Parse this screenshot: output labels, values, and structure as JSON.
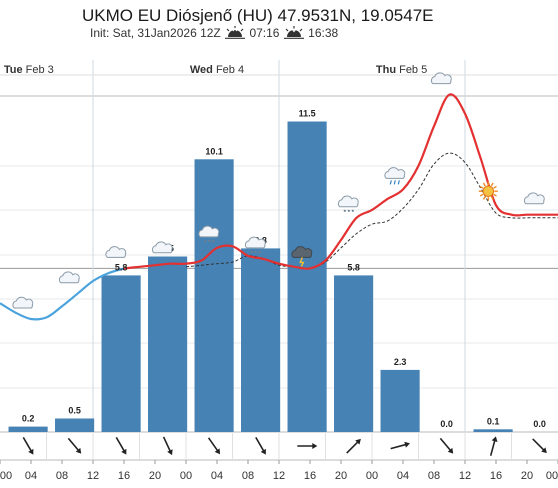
{
  "header": {
    "title": "UKMO EU Diósjenő (HU) 47.9531N, 19.0547E",
    "init_label": "Init: Sat, 31Jan2026 12Z",
    "sunrise": "07:16",
    "sunset": "16:38",
    "sunrise_icon": "sunrise-icon",
    "sunset_icon": "sunset-icon"
  },
  "chart_data": {
    "type": "bar",
    "title": "UKMO EU Diósjenő (HU) 47.9531N, 19.0547E",
    "days": [
      {
        "name": "Tue",
        "date": "Feb 3"
      },
      {
        "name": "Wed",
        "date": "Feb 4"
      },
      {
        "name": "Thu",
        "date": "Feb 5"
      }
    ],
    "x_ticks": [
      "00",
      "04",
      "08",
      "12",
      "16",
      "20",
      "00",
      "04",
      "08",
      "12",
      "16",
      "20",
      "00",
      "04",
      "08",
      "12",
      "16",
      "20",
      "00"
    ],
    "precipitation": {
      "labels": [
        "0.2",
        "0.5",
        "5.8",
        "6.5",
        "10.1",
        "6.8",
        "11.5",
        "5.8",
        "2.3",
        "0.0",
        "0.1",
        "0.0"
      ],
      "values": [
        0.2,
        0.5,
        5.8,
        6.5,
        10.1,
        6.8,
        11.5,
        5.8,
        2.3,
        0.0,
        0.1,
        0.0
      ],
      "color": "#4682b4"
    },
    "temperature": {
      "hours": [
        0,
        4,
        8,
        12,
        16,
        20,
        24,
        28,
        32,
        36,
        40,
        44,
        48,
        52,
        56,
        60,
        64,
        68,
        72,
        76,
        80,
        84,
        88,
        92,
        96,
        100,
        104,
        108,
        112,
        116,
        120,
        124,
        128,
        132,
        136,
        140,
        144
      ],
      "values": [
        -0.2,
        -0.8,
        -1.2,
        -1.1,
        -0.4,
        0.4,
        1.2,
        1.7,
        2.0,
        2.1,
        2.2,
        2.3,
        2.3,
        2.5,
        3.3,
        3.4,
        2.8,
        2.6,
        2.3,
        2.1,
        2.0,
        2.5,
        3.8,
        5.2,
        5.7,
        6.4,
        7.0,
        8.5,
        11.0,
        13.0,
        11.8,
        9.0,
        6.0,
        5.4,
        5.4,
        5.4,
        5.4
      ],
      "cold_color": "#4ba3dd",
      "warm_color": "#e33030",
      "freeze_threshold": 2
    },
    "dewpoint": {
      "hours": [
        48,
        52,
        56,
        60,
        64,
        68,
        72,
        76,
        80,
        84,
        88,
        92,
        96,
        100,
        104,
        108,
        112,
        116,
        120,
        124,
        128,
        132,
        136,
        140,
        144
      ],
      "values": [
        2.1,
        2.2,
        2.3,
        2.4,
        2.8,
        2.6,
        2.2,
        2.1,
        2.0,
        2.4,
        3.3,
        4.2,
        4.8,
        5.0,
        5.8,
        7.0,
        8.6,
        9.3,
        8.7,
        7.1,
        5.5,
        5.2,
        5.2,
        5.2,
        5.2
      ],
      "color": "#333333"
    },
    "weather_icons": [
      {
        "hour": 6,
        "icon": "cloud-icon"
      },
      {
        "hour": 18,
        "icon": "cloud-icon"
      },
      {
        "hour": 30,
        "icon": "cloud-icon"
      },
      {
        "hour": 42,
        "icon": "cloud-icon"
      },
      {
        "hour": 54,
        "icon": "cloud-snow-icon"
      },
      {
        "hour": 66,
        "icon": "cloud-snow-icon"
      },
      {
        "hour": 78,
        "icon": "thunderstorm-icon"
      },
      {
        "hour": 90,
        "icon": "cloud-snow-icon"
      },
      {
        "hour": 102,
        "icon": "cloud-rain-icon"
      },
      {
        "hour": 114,
        "icon": "cloud-icon"
      },
      {
        "hour": 126,
        "icon": "sun-icon"
      },
      {
        "hour": 138,
        "icon": "cloud-icon"
      }
    ],
    "wind_angles": [
      150,
      140,
      150,
      155,
      145,
      150,
      90,
      45,
      75,
      140,
      15,
      135
    ],
    "grid": true
  }
}
